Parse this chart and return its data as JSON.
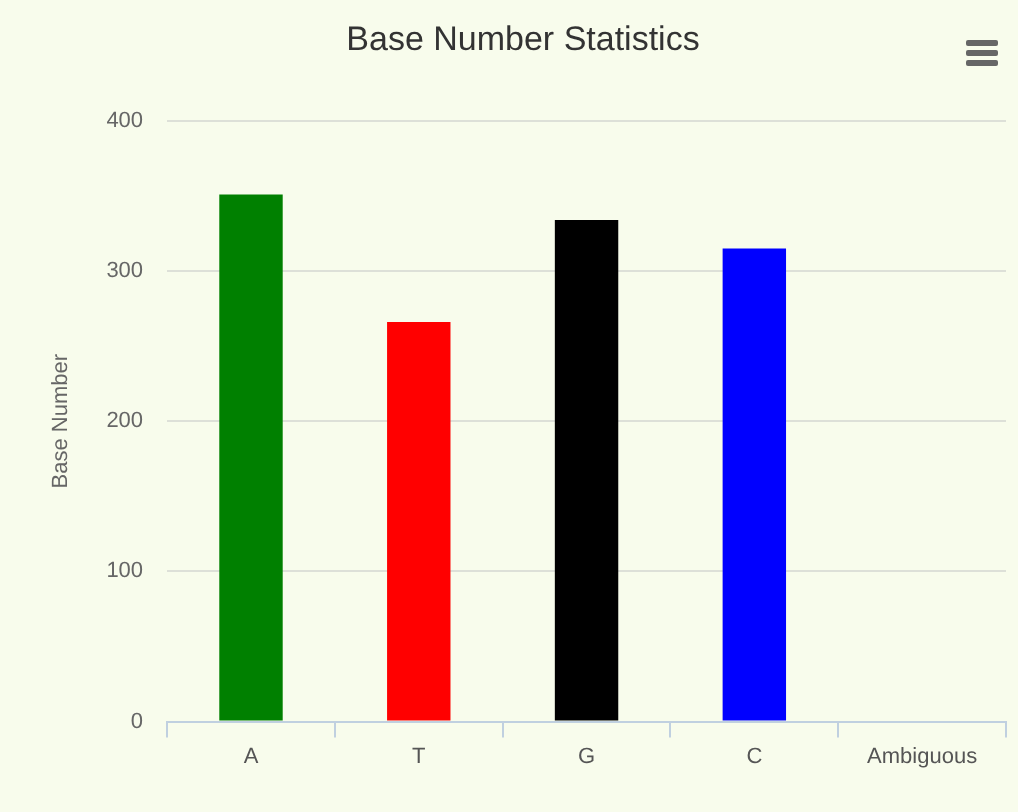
{
  "chart_data": {
    "type": "bar",
    "title": "Base Number Statistics",
    "ylabel": "Base Number",
    "categories": [
      "A",
      "T",
      "G",
      "C",
      "Ambiguous"
    ],
    "values": [
      351,
      266,
      334,
      315,
      0
    ],
    "colors": [
      "#008000",
      "#ff0000",
      "#000000",
      "#0000ff",
      "#808080"
    ],
    "ylim": [
      0,
      400
    ],
    "yticks": [
      0,
      100,
      200,
      300,
      400
    ],
    "grid": "y",
    "legend": false
  }
}
